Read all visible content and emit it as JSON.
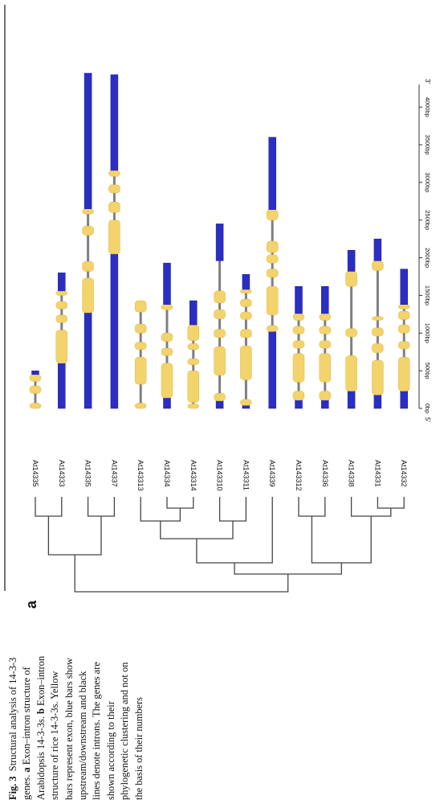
{
  "figure": {
    "panel_label": "a",
    "caption": {
      "fig_label": "Fig. 3",
      "intro": "Structural analysis of 14-3-3 genes.",
      "part_a_label": "a",
      "part_a_text": "Exon–intron structure of Arabidopsis 14-3-3s.",
      "part_b_label": "b",
      "part_b_text": "Exon–intron structure of rice 14-3-3s. Yellow bars represent exon, blue bars show upstream/downstream and black lines denote introns. The genes are shown according to their phylogenetic clustering and not on the basis of their numbers"
    },
    "axis": {
      "five_prime": "5'",
      "three_prime": "3'",
      "ticks": [
        {
          "value": 0,
          "label": "0bp"
        },
        {
          "value": 500,
          "label": "500bp"
        },
        {
          "value": 1000,
          "label": "1000bp"
        },
        {
          "value": 1500,
          "label": "1500bp"
        },
        {
          "value": 2000,
          "label": "2000bp"
        },
        {
          "value": 2500,
          "label": "2500bp"
        },
        {
          "value": 3000,
          "label": "3000bp"
        },
        {
          "value": 3500,
          "label": "3500bp"
        },
        {
          "value": 4000,
          "label": "4000bp"
        }
      ],
      "max": 4300
    },
    "legend_colors": {
      "exon": "#f3d36b",
      "utr": "#2b2dc4",
      "intron": "#7f7f7f"
    },
    "genes": [
      {
        "name": "At14335",
        "length": 500,
        "segments": [
          {
            "type": "exon",
            "start": 0,
            "end": 70
          },
          {
            "type": "exon",
            "start": 200,
            "end": 300
          },
          {
            "type": "exon",
            "start": 360,
            "end": 450
          },
          {
            "type": "utr",
            "start": 450,
            "end": 500
          }
        ]
      },
      {
        "name": "At14333",
        "length": 1800,
        "segments": [
          {
            "type": "utr",
            "start": 0,
            "end": 600
          },
          {
            "type": "exon",
            "start": 600,
            "end": 1040
          },
          {
            "type": "exon",
            "start": 1140,
            "end": 1240
          },
          {
            "type": "exon",
            "start": 1320,
            "end": 1420
          },
          {
            "type": "exon",
            "start": 1500,
            "end": 1560
          },
          {
            "type": "utr",
            "start": 1560,
            "end": 1800
          }
        ]
      },
      {
        "name": "At14335",
        "length": 4450,
        "segments": [
          {
            "type": "utr",
            "start": 0,
            "end": 1270
          },
          {
            "type": "exon",
            "start": 1270,
            "end": 1730
          },
          {
            "type": "exon",
            "start": 1820,
            "end": 1950
          },
          {
            "type": "exon",
            "start": 2300,
            "end": 2420
          },
          {
            "type": "exon",
            "start": 2580,
            "end": 2650
          },
          {
            "type": "utr",
            "start": 2650,
            "end": 4450
          }
        ]
      },
      {
        "name": "At14337",
        "length": 4430,
        "segments": [
          {
            "type": "utr",
            "start": 0,
            "end": 2050
          },
          {
            "type": "exon",
            "start": 2050,
            "end": 2500
          },
          {
            "type": "exon",
            "start": 2600,
            "end": 2740
          },
          {
            "type": "exon",
            "start": 2860,
            "end": 2970
          },
          {
            "type": "exon",
            "start": 3080,
            "end": 3160
          },
          {
            "type": "utr",
            "start": 3160,
            "end": 4430
          }
        ]
      },
      {
        "name": "At143313",
        "length": 1430,
        "segments": [
          {
            "type": "exon",
            "start": 0,
            "end": 70
          },
          {
            "type": "exon",
            "start": 320,
            "end": 680
          },
          {
            "type": "exon",
            "start": 780,
            "end": 880
          },
          {
            "type": "exon",
            "start": 1000,
            "end": 1120
          },
          {
            "type": "exon",
            "start": 1280,
            "end": 1430
          }
        ]
      },
      {
        "name": "At14334",
        "length": 1930,
        "segments": [
          {
            "type": "utr",
            "start": 0,
            "end": 140
          },
          {
            "type": "exon",
            "start": 140,
            "end": 600
          },
          {
            "type": "exon",
            "start": 700,
            "end": 800
          },
          {
            "type": "exon",
            "start": 890,
            "end": 1000
          },
          {
            "type": "exon",
            "start": 1310,
            "end": 1380
          },
          {
            "type": "utr",
            "start": 1380,
            "end": 1930
          }
        ]
      },
      {
        "name": "At143314",
        "length": 1430,
        "segments": [
          {
            "type": "exon",
            "start": 0,
            "end": 60
          },
          {
            "type": "exon",
            "start": 80,
            "end": 500
          },
          {
            "type": "exon",
            "start": 580,
            "end": 660
          },
          {
            "type": "exon",
            "start": 780,
            "end": 860
          },
          {
            "type": "exon",
            "start": 900,
            "end": 1110
          },
          {
            "type": "utr",
            "start": 1110,
            "end": 1430
          }
        ]
      },
      {
        "name": "At143310",
        "length": 2450,
        "segments": [
          {
            "type": "utr",
            "start": 0,
            "end": 100
          },
          {
            "type": "exon",
            "start": 100,
            "end": 200
          },
          {
            "type": "exon",
            "start": 440,
            "end": 820
          },
          {
            "type": "exon",
            "start": 940,
            "end": 1050
          },
          {
            "type": "exon",
            "start": 1190,
            "end": 1310
          },
          {
            "type": "exon",
            "start": 1400,
            "end": 1560
          },
          {
            "type": "utr",
            "start": 1960,
            "end": 2450
          }
        ]
      },
      {
        "name": "At143311",
        "length": 1780,
        "segments": [
          {
            "type": "utr",
            "start": 0,
            "end": 40
          },
          {
            "type": "exon",
            "start": 40,
            "end": 120
          },
          {
            "type": "exon",
            "start": 380,
            "end": 830
          },
          {
            "type": "exon",
            "start": 940,
            "end": 1050
          },
          {
            "type": "exon",
            "start": 1180,
            "end": 1280
          },
          {
            "type": "exon",
            "start": 1350,
            "end": 1450
          },
          {
            "type": "exon",
            "start": 1530,
            "end": 1580
          },
          {
            "type": "utr",
            "start": 1580,
            "end": 1780
          }
        ]
      },
      {
        "name": "At14339",
        "length": 3600,
        "segments": [
          {
            "type": "utr",
            "start": 0,
            "end": 1020
          },
          {
            "type": "exon",
            "start": 1020,
            "end": 1100
          },
          {
            "type": "exon",
            "start": 1240,
            "end": 1620
          },
          {
            "type": "exon",
            "start": 1740,
            "end": 1850
          },
          {
            "type": "exon",
            "start": 1930,
            "end": 2040
          },
          {
            "type": "exon",
            "start": 2070,
            "end": 2220
          },
          {
            "type": "exon",
            "start": 2500,
            "end": 2640
          },
          {
            "type": "utr",
            "start": 2640,
            "end": 3600
          }
        ]
      },
      {
        "name": "At143312",
        "length": 1620,
        "segments": [
          {
            "type": "utr",
            "start": 0,
            "end": 110
          },
          {
            "type": "exon",
            "start": 110,
            "end": 230
          },
          {
            "type": "exon",
            "start": 350,
            "end": 730
          },
          {
            "type": "exon",
            "start": 800,
            "end": 900
          },
          {
            "type": "exon",
            "start": 990,
            "end": 1090
          },
          {
            "type": "exon",
            "start": 1170,
            "end": 1260
          },
          {
            "type": "utr",
            "start": 1260,
            "end": 1620
          }
        ]
      },
      {
        "name": "At14336",
        "length": 1620,
        "segments": [
          {
            "type": "utr",
            "start": 0,
            "end": 110
          },
          {
            "type": "exon",
            "start": 110,
            "end": 230
          },
          {
            "type": "exon",
            "start": 350,
            "end": 730
          },
          {
            "type": "exon",
            "start": 800,
            "end": 900
          },
          {
            "type": "exon",
            "start": 990,
            "end": 1090
          },
          {
            "type": "exon",
            "start": 1170,
            "end": 1260
          },
          {
            "type": "utr",
            "start": 1260,
            "end": 1620
          }
        ]
      },
      {
        "name": "At14338",
        "length": 2100,
        "segments": [
          {
            "type": "utr",
            "start": 0,
            "end": 230
          },
          {
            "type": "exon",
            "start": 230,
            "end": 700
          },
          {
            "type": "exon",
            "start": 950,
            "end": 1060
          },
          {
            "type": "exon",
            "start": 1620,
            "end": 1820
          },
          {
            "type": "utr",
            "start": 1820,
            "end": 2100
          }
        ]
      },
      {
        "name": "At14331",
        "length": 2250,
        "segments": [
          {
            "type": "utr",
            "start": 0,
            "end": 180
          },
          {
            "type": "exon",
            "start": 180,
            "end": 640
          },
          {
            "type": "exon",
            "start": 740,
            "end": 860
          },
          {
            "type": "exon",
            "start": 960,
            "end": 1070
          },
          {
            "type": "exon",
            "start": 1170,
            "end": 1220
          },
          {
            "type": "exon",
            "start": 1830,
            "end": 1960
          },
          {
            "type": "utr",
            "start": 1960,
            "end": 2250
          }
        ]
      },
      {
        "name": "At14332",
        "length": 1850,
        "segments": [
          {
            "type": "utr",
            "start": 0,
            "end": 230
          },
          {
            "type": "exon",
            "start": 230,
            "end": 680
          },
          {
            "type": "exon",
            "start": 790,
            "end": 890
          },
          {
            "type": "exon",
            "start": 1000,
            "end": 1110
          },
          {
            "type": "exon",
            "start": 1180,
            "end": 1290
          },
          {
            "type": "exon",
            "start": 1320,
            "end": 1380
          },
          {
            "type": "utr",
            "start": 1380,
            "end": 1850
          }
        ]
      }
    ]
  }
}
